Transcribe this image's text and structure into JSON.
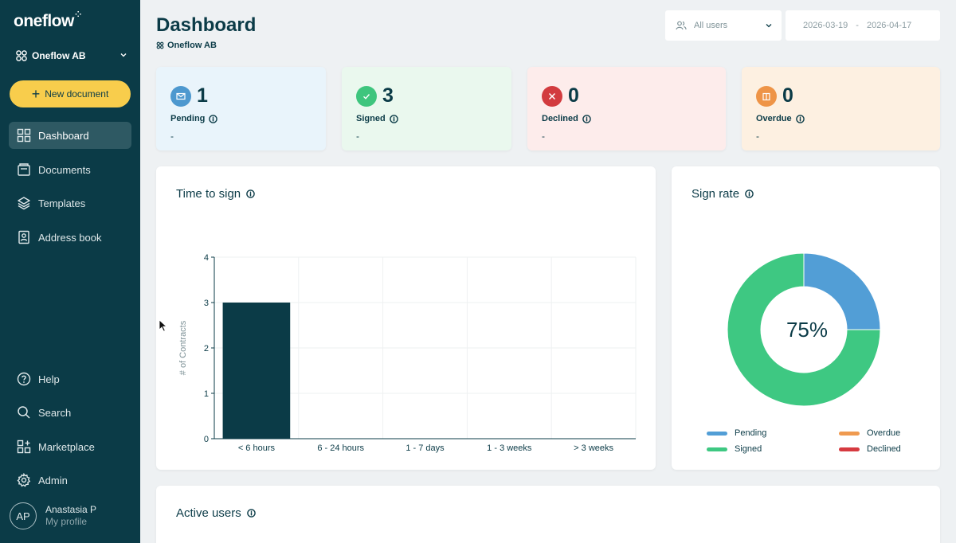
{
  "app": {
    "logo": "oneflow"
  },
  "sidebar": {
    "org_name": "Oneflow AB",
    "new_document_label": "New document",
    "nav": [
      {
        "label": "Dashboard",
        "icon": "dashboard-grid-icon",
        "active": true
      },
      {
        "label": "Documents",
        "icon": "documents-icon"
      },
      {
        "label": "Templates",
        "icon": "templates-layers-icon"
      },
      {
        "label": "Address book",
        "icon": "address-book-icon"
      }
    ],
    "bottom_nav": [
      {
        "label": "Help",
        "icon": "help-icon"
      },
      {
        "label": "Search",
        "icon": "search-icon"
      },
      {
        "label": "Marketplace",
        "icon": "marketplace-icon"
      },
      {
        "label": "Admin",
        "icon": "gear-icon"
      }
    ],
    "profile": {
      "initials": "AP",
      "name": "Anastasia P",
      "subtitle": "My profile"
    }
  },
  "header": {
    "title": "Dashboard",
    "subtitle": "Oneflow AB",
    "user_filter": "All users",
    "date_from": "2026-03-19",
    "date_separator": "-",
    "date_to": "2026-04-17"
  },
  "stats": [
    {
      "count": "1",
      "label": "Pending",
      "sub": "-",
      "bg": "#e9f4fb",
      "icon_bg": "#4d98cf",
      "icon": "envelope-icon"
    },
    {
      "count": "3",
      "label": "Signed",
      "sub": "-",
      "bg": "#eaf8ee",
      "icon_bg": "#3ec57d",
      "icon": "check-icon"
    },
    {
      "count": "0",
      "label": "Declined",
      "sub": "-",
      "bg": "#fdeceb",
      "icon_bg": "#d23b3f",
      "icon": "close-icon"
    },
    {
      "count": "0",
      "label": "Overdue",
      "sub": "-",
      "bg": "#fdf0e1",
      "icon_bg": "#ee9447",
      "icon": "calendar-icon"
    }
  ],
  "time_to_sign": {
    "title": "Time to sign",
    "chart_data": {
      "type": "bar",
      "categories": [
        "< 6 hours",
        "6 - 24 hours",
        "1 - 7 days",
        "1 - 3 weeks",
        "> 3 weeks"
      ],
      "values": [
        3,
        0,
        0,
        0,
        0
      ],
      "ylabel": "# of Contracts",
      "ylim": [
        0,
        4
      ],
      "yticks": [
        "0",
        "1",
        "2",
        "3",
        "4"
      ],
      "grid": true,
      "bar_color": "#0b3b47"
    }
  },
  "sign_rate": {
    "title": "Sign rate",
    "center_label": "75%",
    "chart_data": {
      "type": "pie",
      "donut": true,
      "slices": [
        {
          "name": "Pending",
          "value": 1,
          "color": "#529ed6"
        },
        {
          "name": "Signed",
          "value": 3,
          "color": "#3ec882"
        },
        {
          "name": "Overdue",
          "value": 0,
          "color": "#ef9a50"
        },
        {
          "name": "Declined",
          "value": 0,
          "color": "#d63a40"
        }
      ],
      "legend_placement": "bottom"
    }
  },
  "active_users": {
    "title": "Active users"
  }
}
